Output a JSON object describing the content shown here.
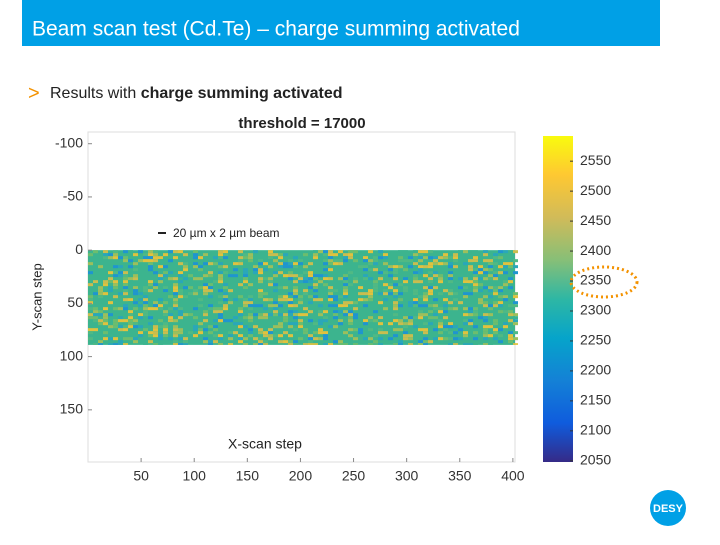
{
  "header": {
    "title": "Beam scan test (Cd.Te) – charge summing activated"
  },
  "bullet": {
    "text": "Results with",
    "bold": "charge summing activated"
  },
  "logo": "DESY",
  "chart_data": {
    "type": "heatmap",
    "title": "threshold = 17000",
    "annotation": "20 µm x 2 µm beam",
    "xlabel": "X-scan step",
    "ylabel": "Y-scan step",
    "xlim": [
      0,
      402
    ],
    "xticks": [
      50,
      100,
      150,
      200,
      250,
      300,
      350,
      400
    ],
    "ylim": [
      -111,
      199
    ],
    "yticks": [
      -100,
      -50,
      0,
      50,
      100,
      150
    ],
    "y_reversed": true,
    "data_extent": {
      "y": [
        0,
        89
      ]
    },
    "colorbar": {
      "lim": [
        2048,
        2592
      ],
      "ticks": [
        2050,
        2100,
        2150,
        2200,
        2250,
        2300,
        2350,
        2400,
        2450,
        2500,
        2550
      ],
      "colormap": "parula"
    }
  }
}
